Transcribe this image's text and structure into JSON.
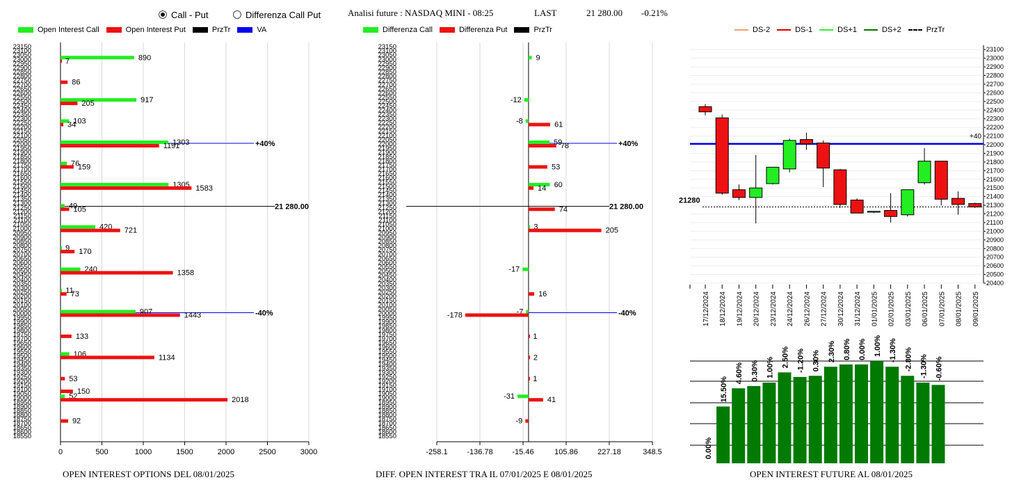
{
  "header": {
    "radio_call_put": "Call - Put",
    "radio_diff": "Differenza Call Put",
    "title": "Analisi future : NASDAQ MINI - 08:25",
    "last_label": "LAST",
    "last_value": "21 280.00",
    "change": "-0.21%"
  },
  "colors": {
    "green": "#22ee22",
    "red": "#ee1111",
    "blue": "#0000ee",
    "dark_green": "#007a00",
    "black": "#000000"
  },
  "panel1": {
    "legend": [
      "Open Interest Call",
      "Open Interest Put",
      "PrzTr",
      "VA"
    ],
    "caption": "OPEN INTEREST OPTIONS DEL 08/01/2025",
    "price_label": "21 280.00",
    "va_high_label": "+40%",
    "va_low_label": "-40%"
  },
  "panel2": {
    "legend": [
      "Differenza Call",
      "Differenza Put",
      "PrzTr"
    ],
    "caption": "DIFF. OPEN INTEREST TRA IL 07/01/2025 E 08/01/2025",
    "price_label": "21 280.00",
    "va_high_label": "+40%",
    "va_low_label": "-40%"
  },
  "panel3": {
    "legend": [
      "DS-2",
      "DS-1",
      "DS+1",
      "DS+2",
      "PrzTr"
    ],
    "price_label": "21280",
    "va_label": "+40",
    "caption": "OPEN INTEREST FUTURE AL 08/01/2025"
  },
  "chart_data": [
    {
      "type": "bar",
      "orientation": "horizontal",
      "strikes_min": 18600,
      "strikes_max": 23150,
      "y_ticks": [
        "23150",
        "23100",
        "23050",
        "23000",
        "22950",
        "22900",
        "22850",
        "22800",
        "22750",
        "22700",
        "22650",
        "22600",
        "22550",
        "22500",
        "22450",
        "22400",
        "22350",
        "22300",
        "22250",
        "22200",
        "22150",
        "22100",
        "22050",
        "22000",
        "21950",
        "21900",
        "21850",
        "21800",
        "21750",
        "21700",
        "21650",
        "21600",
        "21550",
        "21500",
        "21450",
        "21400",
        "21350",
        "21300",
        "21250",
        "21200",
        "21150",
        "21100",
        "21050",
        "21000",
        "20950",
        "20900",
        "20850",
        "20800",
        "20750",
        "20700",
        "20650",
        "20600",
        "20550",
        "20500",
        "20450",
        "20400",
        "20350",
        "20300",
        "20250",
        "20200",
        "20150",
        "20100",
        "20050",
        "20000",
        "19950",
        "19900",
        "19850",
        "19800",
        "19750",
        "19700",
        "19650",
        "19600",
        "19550",
        "19500",
        "19450",
        "19400",
        "19350",
        "19300",
        "19250",
        "19200",
        "19150",
        "19100",
        "19050",
        "19000",
        "18950",
        "18900",
        "18850",
        "18800",
        "18750",
        "18700",
        "18650",
        "18600",
        "18550"
      ],
      "x_ticks": [
        "0",
        "500",
        "1000",
        "1500",
        "2000",
        "2500",
        "3000"
      ],
      "xlim": [
        0,
        3000
      ],
      "series": [
        {
          "name": "Open Interest Call",
          "points": [
            [
              23000,
              890
            ],
            [
              22500,
              917
            ],
            [
              22250,
              103
            ],
            [
              22000,
              1303
            ],
            [
              21750,
              76
            ],
            [
              21500,
              1305
            ],
            [
              21250,
              49
            ],
            [
              21000,
              420
            ],
            [
              20750,
              9
            ],
            [
              20500,
              240
            ],
            [
              20250,
              11
            ],
            [
              20000,
              907
            ],
            [
              19500,
              106
            ],
            [
              19000,
              52
            ]
          ]
        },
        {
          "name": "Open Interest Put",
          "points": [
            [
              23000,
              7
            ],
            [
              22750,
              86
            ],
            [
              22500,
              205
            ],
            [
              22250,
              34
            ],
            [
              22000,
              1191
            ],
            [
              21750,
              159
            ],
            [
              21500,
              1583
            ],
            [
              21250,
              105
            ],
            [
              21000,
              721
            ],
            [
              20750,
              170
            ],
            [
              20500,
              1358
            ],
            [
              20250,
              73
            ],
            [
              20000,
              1443
            ],
            [
              19750,
              133
            ],
            [
              19500,
              1134
            ],
            [
              19250,
              53
            ],
            [
              19000,
              2018
            ],
            [
              19100,
              150
            ],
            [
              18750,
              92
            ]
          ]
        }
      ],
      "price_line": 21280,
      "va_high": 22000,
      "va_low": 20000
    },
    {
      "type": "bar",
      "orientation": "horizontal",
      "x_ticks": [
        "-258.1",
        "-136.78",
        "-15.46",
        "105.86",
        "227.18",
        "348.5"
      ],
      "xlim": [
        -258.1,
        348.5
      ],
      "series": [
        {
          "name": "Differenza Call",
          "points": [
            [
              23000,
              9
            ],
            [
              22500,
              -12
            ],
            [
              22250,
              -8
            ],
            [
              22000,
              59
            ],
            [
              21500,
              60
            ],
            [
              21000,
              3
            ],
            [
              20500,
              -17
            ],
            [
              20000,
              -7
            ],
            [
              19000,
              -31
            ]
          ]
        },
        {
          "name": "Differenza Put",
          "points": [
            [
              22250,
              61
            ],
            [
              22000,
              78
            ],
            [
              21750,
              53
            ],
            [
              21500,
              14
            ],
            [
              21250,
              74
            ],
            [
              21000,
              205
            ],
            [
              20250,
              16
            ],
            [
              20000,
              -178
            ],
            [
              19750,
              1
            ],
            [
              19500,
              2
            ],
            [
              19250,
              1
            ],
            [
              19000,
              41
            ],
            [
              18750,
              -9
            ]
          ]
        }
      ],
      "price_line": 21280,
      "va_high": 22000,
      "va_low": 20000
    },
    {
      "type": "candlestick",
      "dates": [
        "17/12/2024",
        "18/12/2024",
        "19/12/2024",
        "20/12/2024",
        "23/12/2024",
        "24/12/2024",
        "26/12/2024",
        "27/12/2024",
        "30/12/2024",
        "31/12/2024",
        "01/01/2025",
        "02/01/2025",
        "03/01/2025",
        "06/01/2025",
        "07/01/2025",
        "08/01/2025",
        "09/01/2025"
      ],
      "ohlc": [
        [
          22440,
          22470,
          22380,
          22340
        ],
        [
          22310,
          22350,
          21440,
          21420
        ],
        [
          21480,
          21540,
          21390,
          21360
        ],
        [
          21390,
          21880,
          21500,
          21090
        ],
        [
          21550,
          21730,
          21740,
          21540
        ],
        [
          21720,
          22070,
          22050,
          21680
        ],
        [
          22060,
          22140,
          22010,
          21940
        ],
        [
          22020,
          22050,
          21730,
          21510
        ],
        [
          21710,
          21720,
          21310,
          21270
        ],
        [
          21360,
          21380,
          21210,
          21210
        ],
        [
          21220,
          21230,
          21230,
          21210
        ],
        [
          21240,
          21440,
          21170,
          21100
        ],
        [
          21190,
          21470,
          21480,
          21170
        ],
        [
          21560,
          21960,
          21810,
          21540
        ],
        [
          21810,
          21810,
          21370,
          21300
        ],
        [
          21380,
          21460,
          21310,
          21190
        ],
        [
          21320,
          21330,
          21280,
          21270
        ]
      ],
      "y_ticks": [
        "23100",
        "23000",
        "22900",
        "22800",
        "22700",
        "22600",
        "22500",
        "22400",
        "22300",
        "22200",
        "22100",
        "22000",
        "21900",
        "21800",
        "21700",
        "21600",
        "21500",
        "21400",
        "21300",
        "21200",
        "21100",
        "21000",
        "20900",
        "20800",
        "20700",
        "20600",
        "20500",
        "20400"
      ],
      "ylim": [
        20400,
        23150
      ],
      "blue_line": 22010,
      "price_line": 21280
    },
    {
      "type": "bar",
      "categories": [
        "17/12/2024",
        "18/12/2024",
        "19/12/2024",
        "20/12/2024",
        "23/12/2024",
        "24/12/2024",
        "26/12/2024",
        "27/12/2024",
        "30/12/2024",
        "31/12/2024",
        "01/01/2025",
        "02/01/2025",
        "03/01/2025",
        "06/01/2025",
        "07/01/2025",
        "08/01/2025",
        "09/01/2025"
      ],
      "labels": [
        "0.00%",
        "15.50%",
        "4.60%",
        "0.30%",
        "1.00%",
        "2.50%",
        "-1.20%",
        "0.30%",
        "2.30%",
        "0.80%",
        "0.00%",
        "1.00%",
        "-1.30%",
        "-2.80%",
        "-1.30%",
        "-0.60%"
      ],
      "values": [
        0,
        0.5,
        0.66,
        0.68,
        0.71,
        0.8,
        0.76,
        0.77,
        0.85,
        0.87,
        0.87,
        0.9,
        0.85,
        0.77,
        0.71,
        0.69
      ],
      "grid": true
    }
  ]
}
